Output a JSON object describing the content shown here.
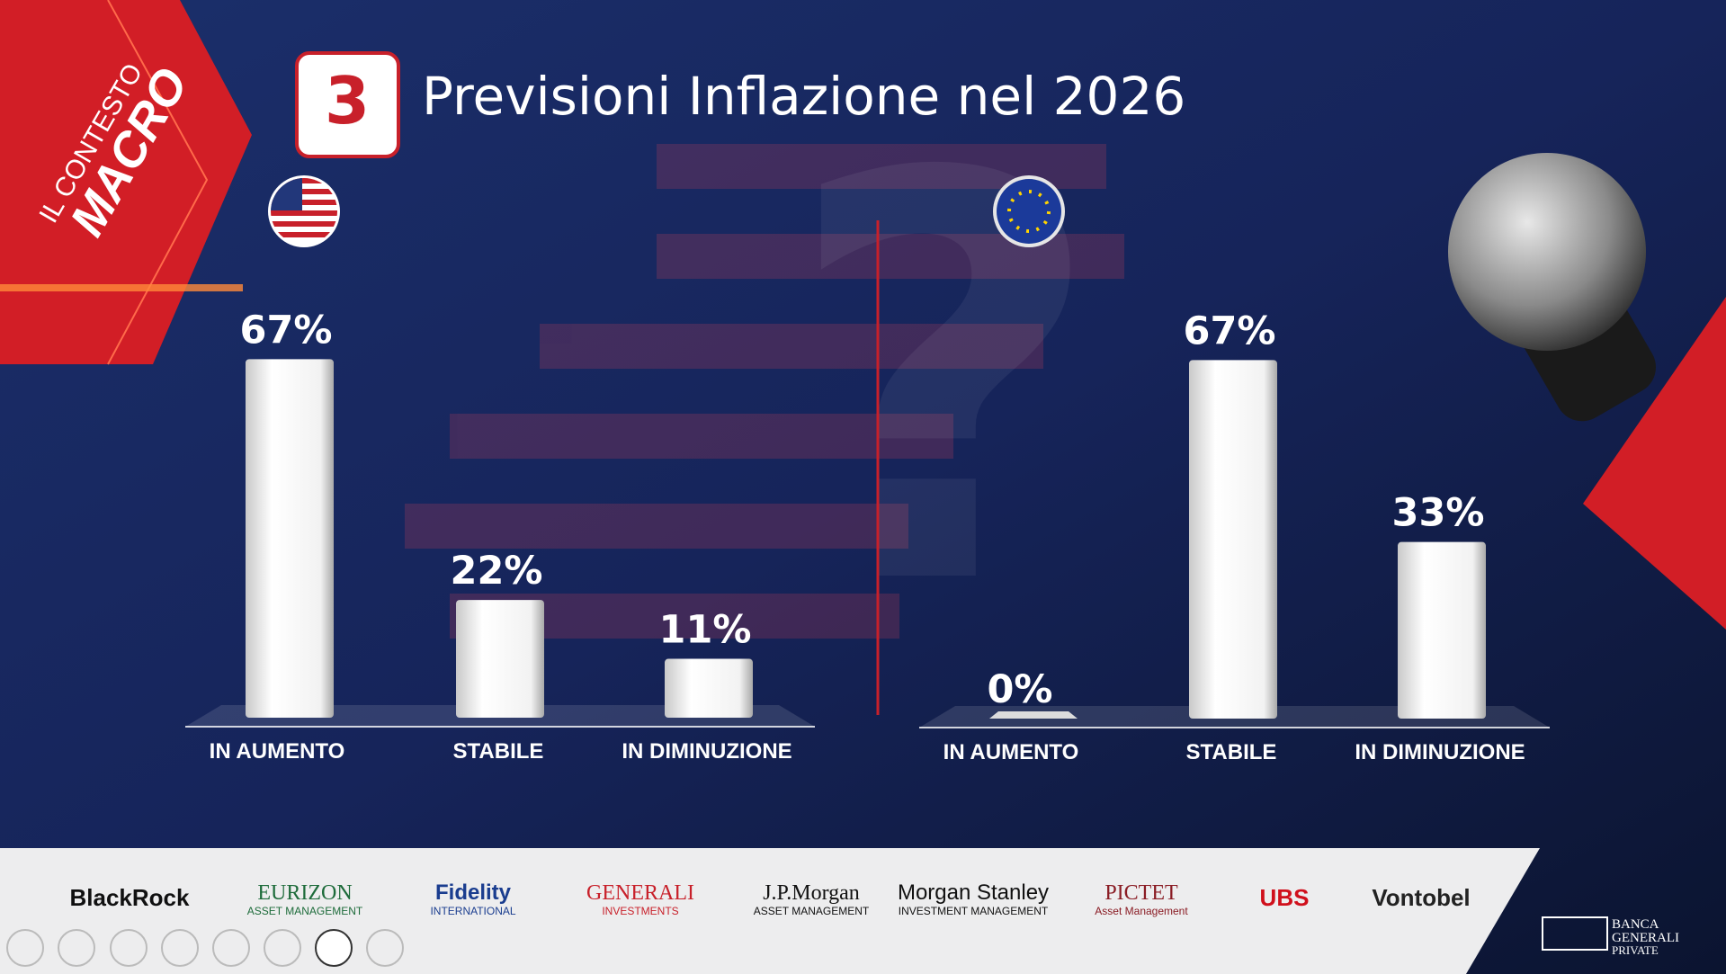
{
  "slide": {
    "section": [
      "IL CONTESTO",
      "MACRO"
    ],
    "badge": "3",
    "title": "Previsioni Inflazione nel 2026",
    "logos": [
      {
        "name": "BlackRock"
      },
      {
        "name": "EURIZON",
        "sub": "ASSET MANAGEMENT"
      },
      {
        "name": "Fidelity",
        "sub": "INTERNATIONAL"
      },
      {
        "name": "GENERALI",
        "sub": "INVESTMENTS"
      },
      {
        "name": "J.P.Morgan",
        "sub": "ASSET MANAGEMENT"
      },
      {
        "name": "Morgan Stanley",
        "sub": "INVESTMENT MANAGEMENT"
      },
      {
        "name": "PICTET",
        "sub": "Asset Management"
      },
      {
        "name": "UBS"
      },
      {
        "name": "Vontobel"
      }
    ],
    "brand": [
      "BANCA",
      "GENERALI",
      "PRIVATE"
    ]
  },
  "chart_data": [
    {
      "type": "bar",
      "categories": [
        "IN AUMENTO",
        "STABILE",
        "IN DIMINUZIONE"
      ],
      "values": [
        67,
        22,
        11
      ],
      "value_labels": [
        "67%",
        "22%",
        "11%"
      ],
      "color": "#ffffff"
    },
    {
      "type": "bar",
      "categories": [
        "IN AUMENTO",
        "STABILE",
        "IN DIMINUZIONE"
      ],
      "values": [
        0,
        67,
        33
      ],
      "value_labels": [
        "0%",
        "67%",
        "33%"
      ],
      "color": "#ffffff"
    }
  ]
}
